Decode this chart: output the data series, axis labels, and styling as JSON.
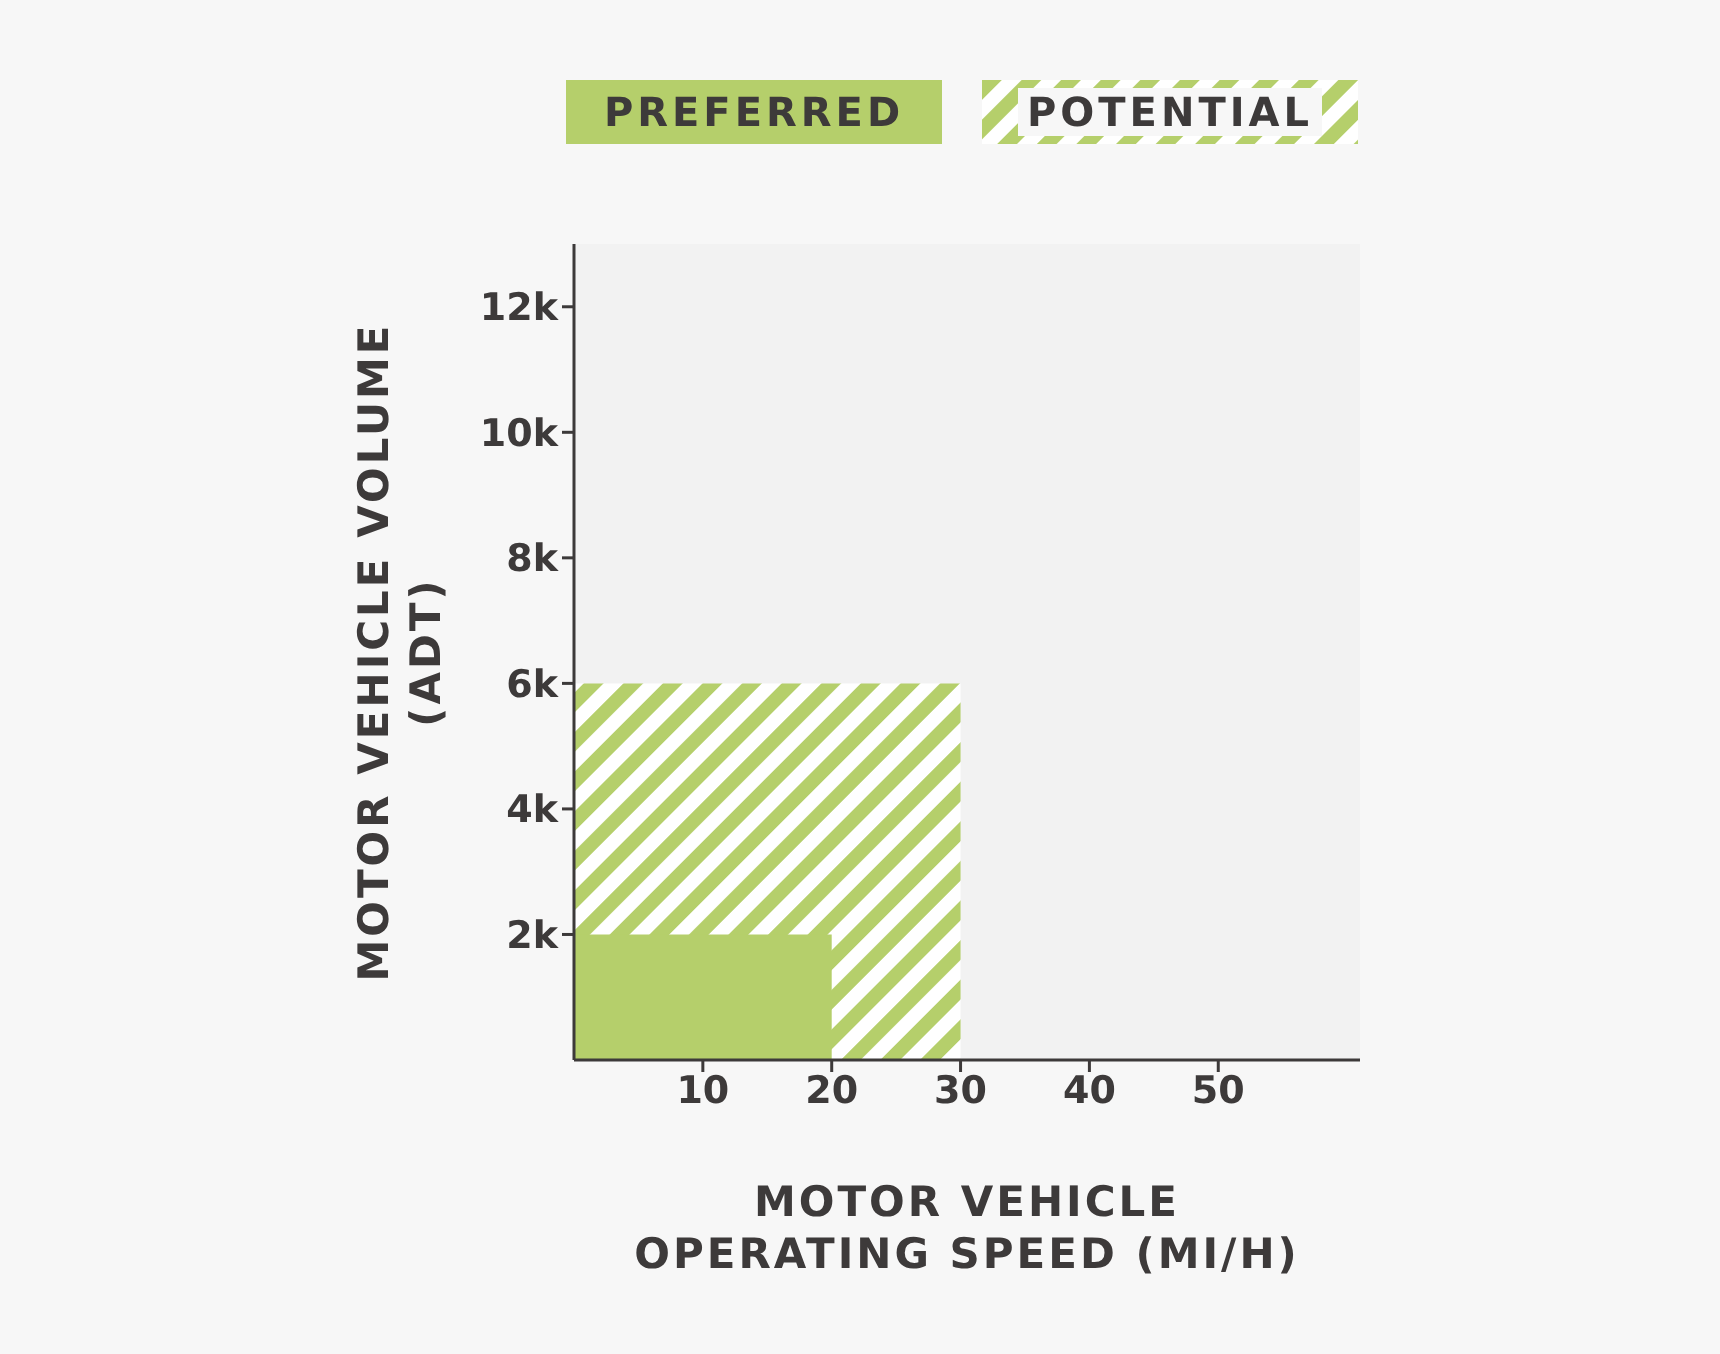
{
  "chart_data": {
    "type": "area",
    "xlabel": "MOTOR VEHICLE\nOPERATING SPEED (MI/H)",
    "ylabel": "MOTOR VEHICLE VOLUME\n(ADT)",
    "series": [
      {
        "name": "PREFERRED",
        "color": "#b5cf6b",
        "x": [
          0,
          20
        ],
        "values": [
          2000,
          2000
        ]
      },
      {
        "name": "POTENTIAL",
        "color": "#b5cf6b",
        "x": [
          0,
          30
        ],
        "values": [
          6000,
          6000
        ]
      }
    ],
    "xlim": [
      0,
      61
    ],
    "xticks": [
      10,
      20,
      30,
      40,
      50
    ],
    "ylim": [
      0,
      13000
    ],
    "yticks": [
      {
        "value": 2000,
        "label": "2k"
      },
      {
        "value": 4000,
        "label": "4k"
      },
      {
        "value": 6000,
        "label": "6k"
      },
      {
        "value": 8000,
        "label": "8k"
      },
      {
        "value": 10000,
        "label": "10k"
      },
      {
        "value": 12000,
        "label": "12k"
      }
    ],
    "grid": false,
    "legend": "top"
  }
}
